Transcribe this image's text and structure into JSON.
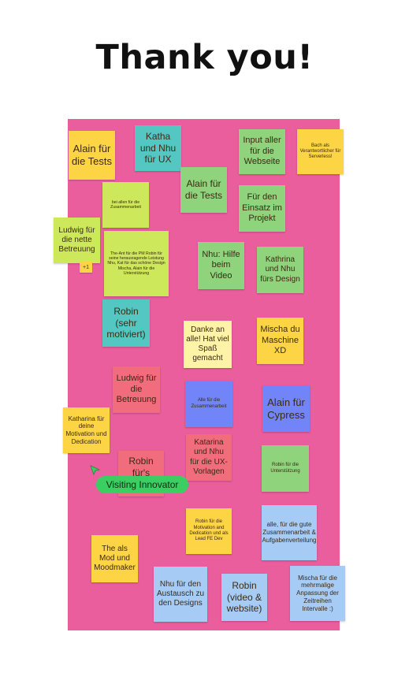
{
  "title": "Thank you!",
  "notes": {
    "n1": "Alain für die Tests",
    "n2": "Katha und Nhu für UX",
    "n3": "Input aller für die Webseite",
    "n4": "Bach als Verantwortlicher für Serverless!",
    "n5": "Alain für die Tests",
    "n6": "bei allen für die Zusammenarbeit",
    "n7": "Für den Einsatz im Projekt",
    "n8": "Ludwig für die nette Betreuung",
    "n9": "The-Ant für die PM Robin für seine herausragende Leistung Nhu, Kat für das schöne Design Mischa, Alain für die Unterstützung",
    "n10": "Nhu: Hilfe beim Video",
    "n11": "Kathrina und Nhu fürs Design",
    "n12": "Robin (sehr motiviert)",
    "n13": "Danke an alle! Hat viel Spaß gemacht",
    "n14": "Mischa du Maschine XD",
    "n15": "Ludwig für die Betreuung",
    "n16": "Alle für die Zusammenarbeit",
    "n17": "Alain für Cypress",
    "n18": "Katharina für deine Motivation und Dedication",
    "n19": "Robin für's",
    "n20": "Katarina und Nhu für die UX-Vorlagen",
    "n21": "Robin für die Unterstützung",
    "n22": "Robin für die Motivation and Dedication und als Lead FE Dev",
    "n23": "alle, für die gute Zusammenarbeit & Aufgabenverteilung",
    "n24": "The als Mod und Moodmaker",
    "n25": "Nhu für den Austausch zu den Designs",
    "n26": "Robin (video & website)",
    "n27": "Mischa für die mehrmalige Anpassung der Zeitreihen Intervalle :)"
  },
  "plus_one": "+1",
  "visitor_label": "Visiting Innovator",
  "colors": {
    "board": "#ea5e9d",
    "yellow": "#fdd544",
    "teal": "#55c7c3",
    "green": "#8fd37c",
    "lime": "#cee85b",
    "cream": "#fff3a8",
    "red": "#f16c7d",
    "blue": "#7285f8",
    "light_blue": "#a6ccf6",
    "visitor_badge": "#3bcf62"
  }
}
